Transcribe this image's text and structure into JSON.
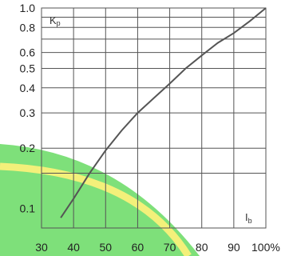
{
  "chart_data": {
    "type": "line",
    "title": "",
    "xlabel": "I",
    "xlabel_sub": "b",
    "ylabel": "K",
    "ylabel_sub": "p",
    "x_scale": "linear",
    "y_scale": "log",
    "xlim": [
      30,
      100
    ],
    "ylim": [
      0.08,
      1.0
    ],
    "x_ticks": [
      {
        "value": 30,
        "label": "30"
      },
      {
        "value": 40,
        "label": "40"
      },
      {
        "value": 50,
        "label": "50"
      },
      {
        "value": 60,
        "label": "60"
      },
      {
        "value": 70,
        "label": "70"
      },
      {
        "value": 80,
        "label": "80"
      },
      {
        "value": 90,
        "label": "90"
      },
      {
        "value": 100,
        "label": "100%"
      }
    ],
    "y_ticks": [
      {
        "value": 0.1,
        "label": "0.1"
      },
      {
        "value": 0.2,
        "label": "0.2"
      },
      {
        "value": 0.3,
        "label": "0.3"
      },
      {
        "value": 0.4,
        "label": "0.4"
      },
      {
        "value": 0.5,
        "label": "0.5"
      },
      {
        "value": 0.6,
        "label": "0.6"
      },
      {
        "value": 0.8,
        "label": "0.8"
      },
      {
        "value": 1.0,
        "label": "1.0"
      }
    ],
    "y_grid": [
      0.15,
      0.2,
      0.3,
      0.4,
      0.5,
      0.6,
      0.7,
      0.8,
      0.9,
      1.0
    ],
    "x_grid": [
      40,
      50,
      60,
      70,
      80,
      90,
      100
    ],
    "grid": true,
    "legend": "none",
    "series": [
      {
        "x": [
          36,
          40,
          45,
          50,
          55,
          60,
          65,
          70,
          75,
          80,
          85,
          90,
          95,
          100
        ],
        "y": [
          0.09,
          0.112,
          0.15,
          0.195,
          0.245,
          0.3,
          0.355,
          0.42,
          0.5,
          0.58,
          0.67,
          0.75,
          0.86,
          1.0
        ],
        "color": "#555555"
      }
    ]
  },
  "colors": {
    "curve": "#555555",
    "grid": "#555555",
    "overlay_green": "#7ee07a",
    "overlay_yellow": "#f3f07a"
  }
}
